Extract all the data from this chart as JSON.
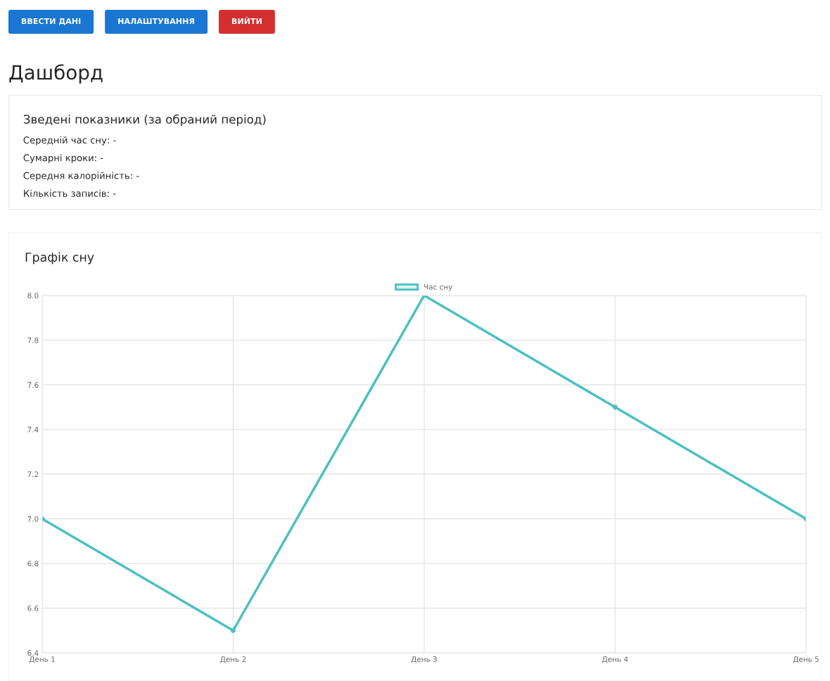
{
  "chart_data": [
    {
      "type": "other",
      "annotations": [
        "ВВЕСТИ ДАНІ",
        "НАЛАШТУВАННЯ",
        "ВИЙТИ"
      ],
      "colors": [
        "#1976d2",
        "#1976d2",
        "#d32f2f"
      ]
    },
    {
      "type": "other",
      "title": "Дашборд",
      "subtitle": "Зведені показники (за обраний період)",
      "annotations": [
        "Середній час сну: -",
        "Сумарні кроки: -",
        "Середня калорійність: -",
        "Кількість записів: -"
      ]
    },
    {
      "type": "line",
      "title": "Графік сну",
      "categories": [
        "День 1",
        "День 2",
        "День 3",
        "День 4",
        "День 5"
      ],
      "series": [
        {
          "name": "Час сну",
          "color": "#4bc0c0",
          "values": [
            7.0,
            6.5,
            8.0,
            7.5,
            7.0
          ]
        }
      ],
      "ylim": [
        6.4,
        8.0
      ],
      "yticks": [
        6.4,
        6.6,
        6.8,
        {
          "value": 7,
          "label": "7.0"
        },
        7.2,
        7.4,
        7.6,
        7.8,
        {
          "value": 8,
          "label": "8.0"
        }
      ],
      "grid": true,
      "legend": "top",
      "marker": "circle",
      "line_style": "solid"
    }
  ]
}
